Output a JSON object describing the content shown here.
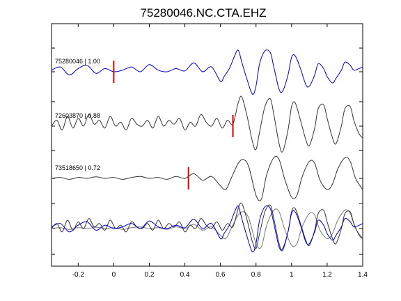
{
  "figure": {
    "title": "75280046.NC.CTA.EHZ"
  },
  "chart_data": {
    "type": "line",
    "title": "75280046.NC.CTA.EHZ",
    "xlabel": "",
    "ylabel": "",
    "xlim": [
      -0.35,
      1.4
    ],
    "x_ticks": [
      -0.2,
      0,
      0.2,
      0.4,
      0.6,
      0.8,
      1,
      1.2,
      1.4
    ],
    "x_tick_labels": [
      "-0.2",
      "0",
      "0.2",
      "0.4",
      "0.6",
      "0.8",
      "1",
      "1.2",
      "1.4"
    ],
    "grid": false,
    "pick_color": "#e00000",
    "traces": [
      {
        "label": "75280046 | 1.00",
        "color": "#0000cc",
        "pick_time": 0.0,
        "x": [
          -0.35,
          -0.3,
          -0.25,
          -0.2,
          -0.15,
          -0.1,
          -0.05,
          0,
          0.05,
          0.1,
          0.15,
          0.2,
          0.25,
          0.3,
          0.35,
          0.4,
          0.45,
          0.5,
          0.55,
          0.6,
          0.62,
          0.65,
          0.68,
          0.7,
          0.72,
          0.75,
          0.78,
          0.8,
          0.82,
          0.85,
          0.88,
          0.9,
          0.93,
          0.95,
          0.98,
          1.0,
          1.02,
          1.05,
          1.08,
          1.1,
          1.13,
          1.15,
          1.18,
          1.2,
          1.23,
          1.25,
          1.28,
          1.3,
          1.33,
          1.35,
          1.38,
          1.4
        ],
        "y": [
          0.1,
          0.3,
          -0.2,
          0.2,
          0.4,
          -0.1,
          0.2,
          0.0,
          0.1,
          0.3,
          0.0,
          0.45,
          0.1,
          0.0,
          0.2,
          0.05,
          0.55,
          0.0,
          0.3,
          -0.6,
          -0.3,
          0.2,
          1.0,
          1.35,
          0.6,
          -0.5,
          -1.4,
          -0.9,
          0.5,
          1.3,
          1.2,
          0.3,
          -1.1,
          -1.2,
          -0.2,
          0.9,
          1.0,
          0.2,
          -0.8,
          -0.9,
          -0.2,
          0.5,
          0.2,
          -0.3,
          -0.7,
          -0.4,
          0.1,
          0.6,
          0.4,
          0.1,
          0.2,
          0.3
        ]
      },
      {
        "label": "72603870 | 0.88",
        "color": "#333333",
        "pick_time": 0.67,
        "x": [
          -0.35,
          -0.32,
          -0.29,
          -0.26,
          -0.23,
          -0.2,
          -0.17,
          -0.14,
          -0.11,
          -0.08,
          -0.05,
          -0.02,
          0.01,
          0.04,
          0.07,
          0.1,
          0.13,
          0.16,
          0.19,
          0.22,
          0.25,
          0.28,
          0.31,
          0.34,
          0.37,
          0.4,
          0.43,
          0.46,
          0.49,
          0.52,
          0.55,
          0.58,
          0.61,
          0.64,
          0.67,
          0.7,
          0.72,
          0.75,
          0.78,
          0.8,
          0.82,
          0.85,
          0.88,
          0.9,
          0.93,
          0.95,
          0.98,
          1.0,
          1.02,
          1.05,
          1.08,
          1.1,
          1.13,
          1.15,
          1.18,
          1.2,
          1.23,
          1.25,
          1.28,
          1.3,
          1.33,
          1.35,
          1.38,
          1.4
        ],
        "y": [
          0.0,
          0.3,
          -0.2,
          0.5,
          -0.1,
          0.4,
          0.0,
          0.6,
          0.1,
          0.3,
          -0.1,
          0.5,
          0.0,
          0.2,
          -0.2,
          0.4,
          0.1,
          0.0,
          0.3,
          -0.1,
          0.5,
          0.0,
          0.3,
          0.1,
          0.4,
          -0.2,
          0.2,
          0.0,
          0.6,
          0.2,
          0.0,
          0.4,
          -0.1,
          0.3,
          0.1,
          1.2,
          1.5,
          0.5,
          -0.8,
          -1.2,
          -0.3,
          1.0,
          1.4,
          0.6,
          -0.9,
          -1.3,
          -0.2,
          1.0,
          1.2,
          0.3,
          -0.7,
          -1.0,
          -0.1,
          0.9,
          1.1,
          0.4,
          -0.6,
          -0.9,
          0.0,
          0.9,
          1.0,
          0.3,
          -0.4,
          -0.6
        ]
      },
      {
        "label": "73518650 | 0.72",
        "color": "#333333",
        "pick_time": 0.42,
        "x": [
          -0.35,
          -0.3,
          -0.25,
          -0.2,
          -0.15,
          -0.1,
          -0.05,
          0,
          0.05,
          0.1,
          0.15,
          0.2,
          0.25,
          0.3,
          0.35,
          0.4,
          0.45,
          0.5,
          0.55,
          0.6,
          0.63,
          0.66,
          0.7,
          0.73,
          0.76,
          0.8,
          0.83,
          0.86,
          0.9,
          0.93,
          0.96,
          1.0,
          1.03,
          1.06,
          1.1,
          1.13,
          1.16,
          1.2,
          1.23,
          1.26,
          1.3,
          1.33,
          1.36,
          1.4
        ],
        "y": [
          0.0,
          0.05,
          -0.05,
          0.05,
          0.0,
          0.08,
          0.0,
          0.05,
          -0.05,
          0.05,
          0.1,
          0.0,
          0.05,
          -0.05,
          0.1,
          0.0,
          0.25,
          -0.1,
          0.1,
          -0.4,
          -0.6,
          0.0,
          0.8,
          1.0,
          0.6,
          -0.9,
          -1.1,
          0.2,
          1.1,
          1.0,
          0.0,
          -1.0,
          -0.9,
          0.1,
          0.9,
          0.8,
          -0.1,
          -0.6,
          -0.3,
          0.5,
          1.1,
          0.9,
          0.0,
          -0.6
        ]
      }
    ],
    "overlay": {
      "series_colors": [
        "#0000cc",
        "#333333",
        "#777777"
      ]
    }
  }
}
